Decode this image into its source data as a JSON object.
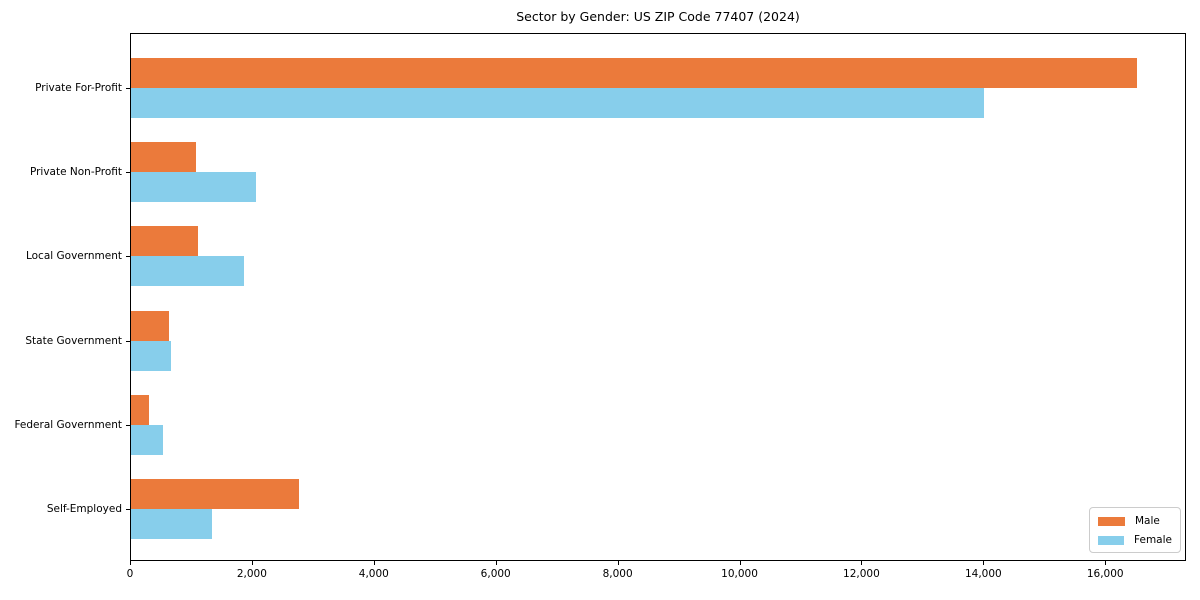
{
  "title": "Sector by Gender: US ZIP Code 77407 (2024)",
  "chart_data": {
    "type": "bar",
    "orientation": "horizontal",
    "title": "Sector by Gender: US ZIP Code 77407 (2024)",
    "categories": [
      "Private For-Profit",
      "Private Non-Profit",
      "Local Government",
      "State Government",
      "Federal Government",
      "Self-Employed"
    ],
    "series": [
      {
        "name": "Male",
        "color": "#EB7A3B",
        "values": [
          16500,
          1070,
          1100,
          620,
          300,
          2760
        ]
      },
      {
        "name": "Female",
        "color": "#87CEEB",
        "values": [
          14000,
          2050,
          1860,
          660,
          530,
          1330
        ]
      }
    ],
    "xlabel": "",
    "ylabel": "",
    "xlim": [
      0,
      17325
    ],
    "xticks": [
      0,
      2000,
      4000,
      6000,
      8000,
      10000,
      12000,
      14000,
      16000
    ],
    "xtick_labels": [
      "0",
      "2,000",
      "4,000",
      "6,000",
      "8,000",
      "10,000",
      "12,000",
      "14,000",
      "16,000"
    ],
    "grid": false,
    "legend": {
      "position": "lower right",
      "entries": [
        {
          "label": "Male",
          "color": "#EB7A3B"
        },
        {
          "label": "Female",
          "color": "#87CEEB"
        }
      ]
    }
  },
  "colors": {
    "male": "#EB7A3B",
    "female": "#87CEEB",
    "spine": "#000000",
    "legend_border": "#cccccc",
    "background": "#ffffff",
    "text": "#000000"
  }
}
